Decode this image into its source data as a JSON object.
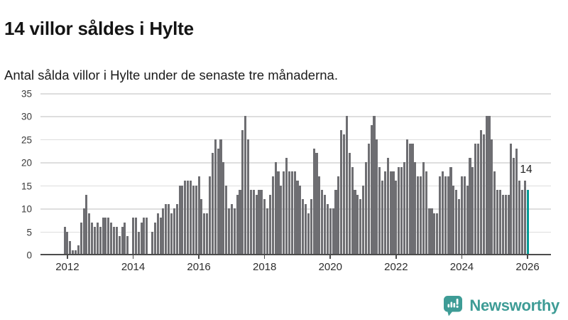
{
  "header": {
    "title": "14 villor såldes i Hylte",
    "subtitle": "Antal sålda villor i Hylte under de senaste tre månaderna."
  },
  "branding": {
    "name": "Newsworthy",
    "icon": "bar-chart-speech-bubble-icon"
  },
  "colors": {
    "bar": "#6e6e72",
    "highlight": "#009b95",
    "grid": "#dedede",
    "axis": "#4c4c4c",
    "brand_teal": "#3e9c96",
    "title_text": "#141414"
  },
  "chart_data": {
    "type": "bar",
    "title": "14 villor såldes i Hylte",
    "subtitle": "Antal sålda villor i Hylte under de senaste tre månaderna.",
    "xlabel": "",
    "ylabel": "",
    "ylim": [
      0,
      35
    ],
    "y_ticks": [
      0,
      5,
      10,
      15,
      20,
      25,
      30,
      35
    ],
    "grid": true,
    "legend": false,
    "x_tick_labels": [
      "2012",
      "2014",
      "2016",
      "2018",
      "2020",
      "2022",
      "2024",
      "2026"
    ],
    "x_tick_indices": [
      1,
      25,
      49,
      73,
      97,
      121,
      145,
      169
    ],
    "values": [
      6,
      5,
      3,
      1,
      1,
      2,
      7,
      10,
      13,
      9,
      7,
      6,
      7,
      6,
      8,
      8,
      8,
      7,
      6,
      6,
      4,
      6,
      7,
      4,
      0,
      8,
      8,
      5,
      7,
      8,
      8,
      0,
      5,
      7,
      9,
      8,
      10,
      11,
      11,
      9,
      10,
      11,
      15,
      15,
      16,
      16,
      16,
      15,
      15,
      17,
      12,
      9,
      9,
      17,
      22,
      25,
      23,
      25,
      20,
      15,
      10,
      11,
      10,
      13,
      14,
      27,
      30,
      25,
      14,
      14,
      13,
      14,
      14,
      12,
      10,
      13,
      17,
      20,
      18,
      15,
      18,
      21,
      18,
      18,
      18,
      16,
      15,
      12,
      11,
      9,
      12,
      23,
      22,
      17,
      14,
      13,
      11,
      10,
      10,
      14,
      17,
      27,
      26,
      30,
      22,
      19,
      14,
      13,
      12,
      15,
      20,
      24,
      28,
      30,
      25,
      19,
      16,
      18,
      21,
      18,
      18,
      16,
      19,
      19,
      20,
      25,
      24,
      24,
      20,
      17,
      17,
      20,
      18,
      10,
      10,
      9,
      9,
      17,
      18,
      17,
      17,
      19,
      15,
      14,
      12,
      17,
      17,
      15,
      21,
      19,
      24,
      24,
      27,
      26,
      30,
      30,
      25,
      18,
      14,
      14,
      13,
      13,
      13,
      24,
      21,
      23,
      16,
      14,
      16,
      14
    ],
    "highlight_index": 169,
    "highlight_value": 14,
    "highlight_label": "14"
  }
}
